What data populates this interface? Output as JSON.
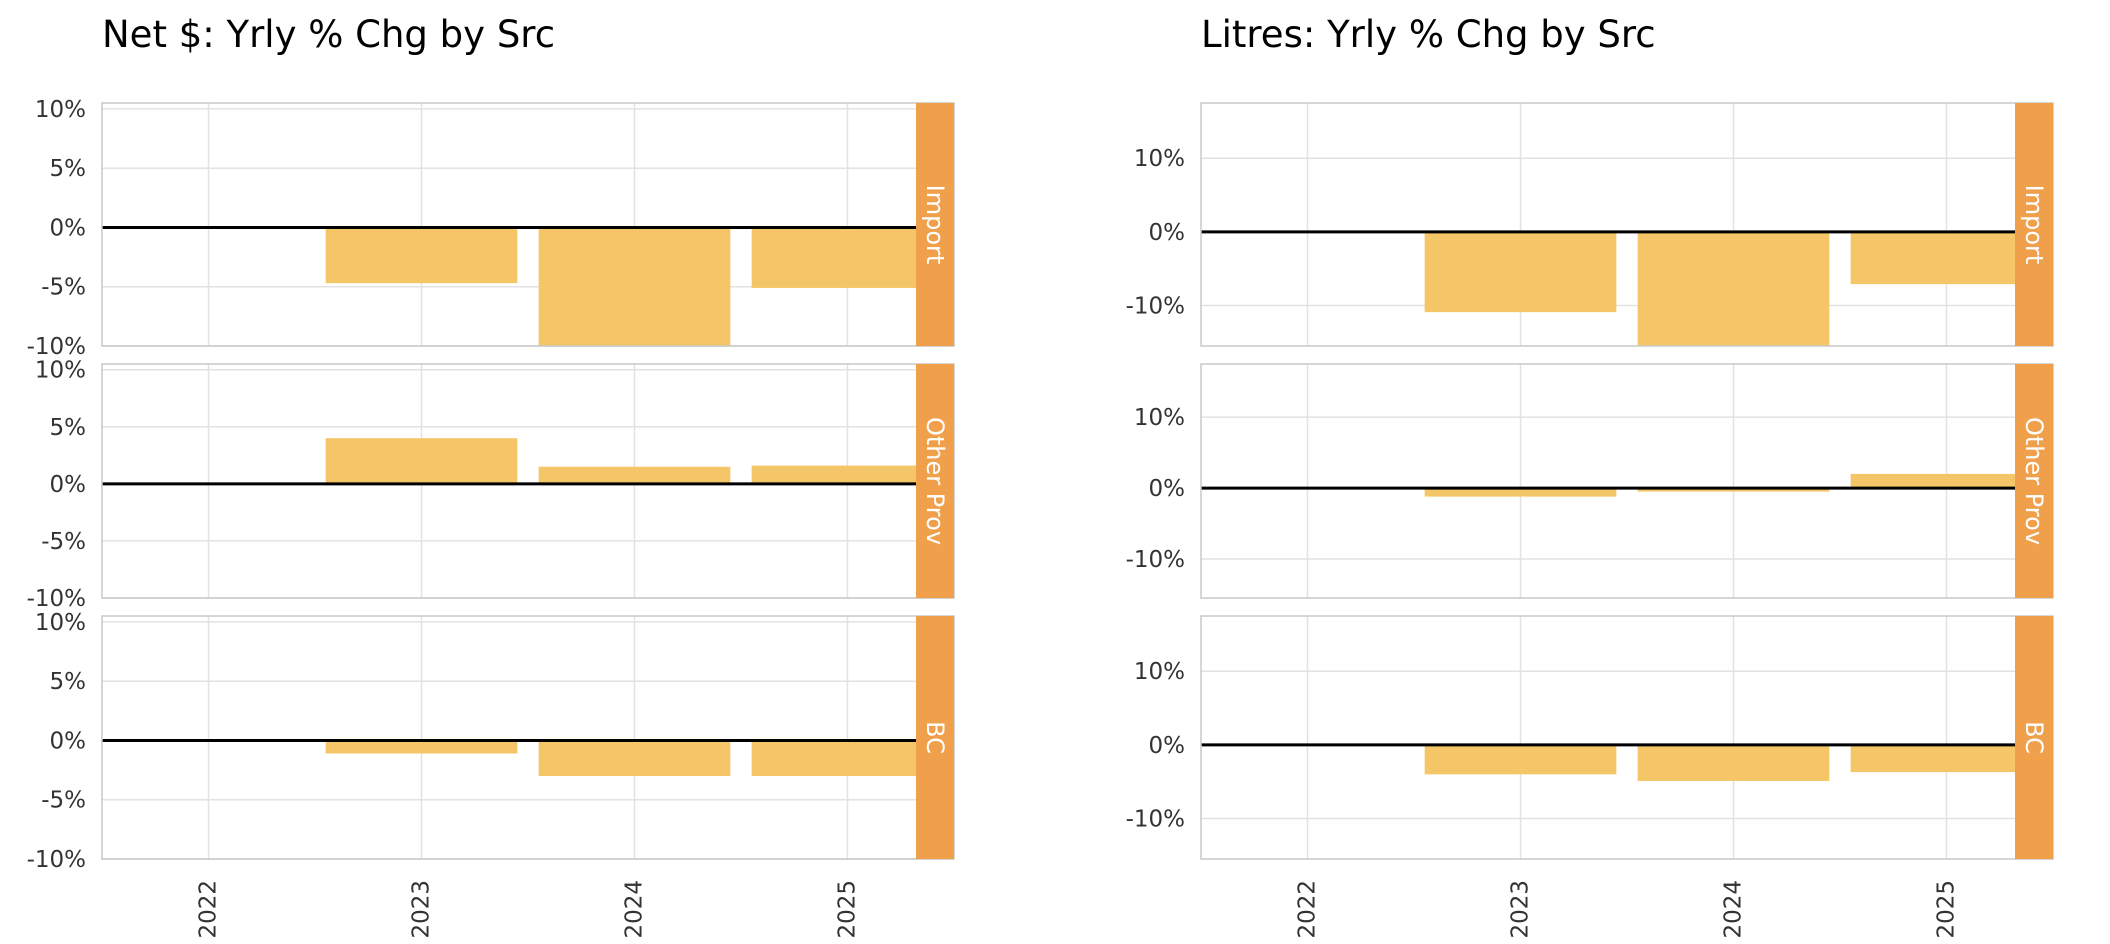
{
  "colors": {
    "bar": "#F5C667",
    "strip": "#F0A04B",
    "grid": "#E2E2E2",
    "panel_border": "#C8C8C8",
    "zero_line": "#000000"
  },
  "chart_data": [
    {
      "type": "bar",
      "title": "Net $: Yrly % Chg by Src",
      "categories": [
        "2022",
        "2023",
        "2024",
        "2025"
      ],
      "y_ticks": [
        -10,
        -5,
        0,
        5,
        10
      ],
      "y_tick_labels": [
        "-10%",
        "-5%",
        "0%",
        "5%",
        "10%"
      ],
      "ylim": [
        -10,
        10.5
      ],
      "grid": true,
      "facets": [
        {
          "name": "Import",
          "values": [
            null,
            -4.7,
            -10.0,
            -5.1
          ]
        },
        {
          "name": "Other Prov",
          "values": [
            null,
            4.0,
            1.5,
            1.6
          ]
        },
        {
          "name": "BC",
          "values": [
            null,
            -1.1,
            -3.0,
            -3.0
          ]
        }
      ]
    },
    {
      "type": "bar",
      "title": "Litres: Yrly % Chg by Src",
      "categories": [
        "2022",
        "2023",
        "2024",
        "2025"
      ],
      "y_ticks": [
        -10,
        0,
        10
      ],
      "y_tick_labels": [
        "-10%",
        "0%",
        "10%"
      ],
      "ylim": [
        -15.5,
        17.5
      ],
      "grid": true,
      "facets": [
        {
          "name": "Import",
          "values": [
            null,
            -10.9,
            -15.5,
            -7.1
          ]
        },
        {
          "name": "Other Prov",
          "values": [
            null,
            -1.2,
            -0.5,
            2.0
          ]
        },
        {
          "name": "BC",
          "values": [
            null,
            -4.0,
            -4.9,
            -3.7
          ]
        }
      ]
    }
  ]
}
